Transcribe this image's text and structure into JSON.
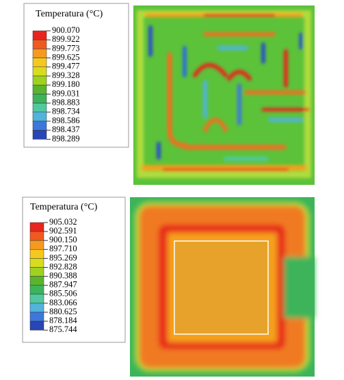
{
  "panels": [
    {
      "legend": {
        "title": "Temperatura (°C)",
        "labels": [
          "900.070",
          "899.922",
          "899.773",
          "899.625",
          "899.477",
          "899.328",
          "899.180",
          "899.031",
          "898.883",
          "898.734",
          "898.586",
          "898.437",
          "898.289"
        ]
      }
    },
    {
      "legend": {
        "title": "Temperatura (°C)",
        "labels": [
          "905.032",
          "902.591",
          "900.150",
          "897.710",
          "895.269",
          "892.828",
          "890.388",
          "887.947",
          "885.506",
          "883.066",
          "880.625",
          "878.184",
          "875.744"
        ]
      }
    }
  ]
}
